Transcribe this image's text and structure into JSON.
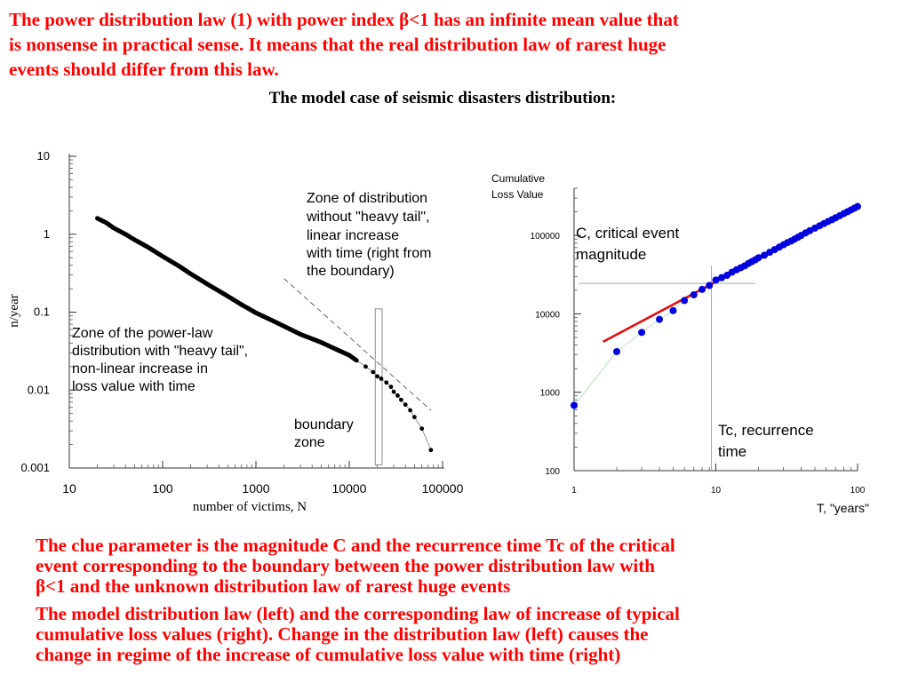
{
  "intro_lines": [
    "The power distribution  law  (1)  with  power  index  β<1 has an infinite mean value that",
    "is nonsense  in practical sense. It means that the real distribution law  of rarest huge",
    "events should differ from this law."
  ],
  "subtitle": "The  model  case  of  seismic  disasters  distribution:",
  "clue_lines": [
    "The clue  parameter  is the magnitude C  and  the recurrence time  Tc  of the critical",
    "event corresponding to the  boundary between  the  power distribution law     with",
    "β<1 and the unknown   distribution law of rarest  huge events"
  ],
  "caption_lines": [
    "The  model  distribution law  (left)  and the corresponding law of increase of typical",
    "cumulative loss values  (right).  Change in the distribution law (left)  causes the",
    "change in regime  of  the increase of cumulative loss value with time  (right)"
  ],
  "chart_data": [
    {
      "type": "scatter",
      "xlabel": "number  of  victims, N",
      "ylabel": "n/year",
      "xscale": "log",
      "yscale": "log",
      "xlim": [
        10,
        100000
      ],
      "ylim": [
        0.001,
        10
      ],
      "xticks": [
        "10",
        "100",
        "1000",
        "10000",
        "100000"
      ],
      "yticks": [
        "0.001",
        "0.01",
        "0.1",
        "1",
        "10"
      ],
      "series": [
        {
          "x": [
            20,
            25,
            30,
            40,
            50,
            70,
            100,
            150,
            200,
            300,
            500,
            700,
            1000,
            1500,
            2000,
            3000,
            5000,
            7000,
            10000,
            12000,
            15000,
            18000,
            20000,
            22000,
            25000,
            28000,
            30000,
            33000,
            36000,
            40000,
            45000,
            50000,
            60000,
            75000
          ],
          "y": [
            1.6,
            1.4,
            1.2,
            1.0,
            0.85,
            0.68,
            0.52,
            0.39,
            0.31,
            0.23,
            0.16,
            0.125,
            0.098,
            0.078,
            0.066,
            0.052,
            0.041,
            0.034,
            0.028,
            0.024,
            0.02,
            0.017,
            0.015,
            0.014,
            0.0125,
            0.011,
            0.0095,
            0.0085,
            0.0075,
            0.0065,
            0.0055,
            0.0045,
            0.0032,
            0.0017
          ]
        }
      ],
      "reference_line": {
        "from": [
          2000,
          0.27
        ],
        "to": [
          75000,
          0.0055
        ],
        "style": "dashed"
      },
      "boundary_zone": {
        "x": [
          19000,
          22500
        ],
        "y": [
          0.0011,
          0.11
        ]
      },
      "annotations": [
        "Zone of distribution",
        "without \"heavy tail\",",
        "linear increase",
        "with time  (right  from",
        "the boundary)",
        "Zone of the power-law",
        "distribution  with \"heavy tail\",",
        "non-linear increase  in",
        "loss value with time",
        "boundary",
        "zone"
      ]
    },
    {
      "type": "scatter",
      "ylabel_lines": [
        "Cumulative",
        "Loss  Value"
      ],
      "xlabel": "T, \"years\"",
      "xscale": "log",
      "yscale": "log",
      "xlim": [
        1,
        100
      ],
      "ylim": [
        100,
        400000
      ],
      "xticks": [
        "1",
        "10",
        "100"
      ],
      "yticks": [
        "100",
        "1000",
        "10000",
        "100000"
      ],
      "series": [
        {
          "x": [
            1,
            2,
            3,
            4,
            5,
            6,
            7,
            8,
            9,
            10,
            11,
            12,
            13,
            14,
            15,
            16,
            17,
            18,
            19,
            20,
            22,
            24,
            26,
            28,
            30,
            32,
            34,
            36,
            38,
            40,
            43,
            46,
            50,
            54,
            58,
            62,
            66,
            70,
            75,
            80,
            85,
            90,
            95,
            100
          ],
          "y": [
            680,
            3300,
            5800,
            8500,
            11000,
            14800,
            17500,
            20500,
            23000,
            27000,
            29000,
            31000,
            34000,
            36500,
            38800,
            41000,
            44000,
            46500,
            49000,
            52000,
            56000,
            61000,
            66000,
            71000,
            76000,
            81000,
            85000,
            90000,
            95000,
            100000,
            108000,
            115000,
            124000,
            133000,
            142000,
            151000,
            159000,
            168000,
            179000,
            190000,
            201000,
            212000,
            223000,
            234000
          ]
        }
      ],
      "fit_line": {
        "from": [
          1.6,
          4400
        ],
        "to": [
          100,
          234000
        ],
        "color": "#e01010"
      },
      "critical_point": {
        "T": 9.3,
        "C": 24500
      },
      "annotations": [
        "C, critical event",
        "magnitude",
        "Tc,  recurrence",
        "time"
      ],
      "colors": {
        "points": "#0000e0",
        "fit": "#e01010",
        "guide": "#a8a8a8"
      }
    }
  ]
}
